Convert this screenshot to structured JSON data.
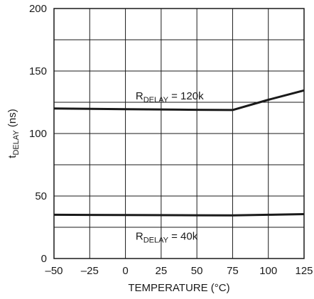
{
  "chart_data": {
    "type": "line",
    "title": "",
    "xlabel": "TEMPERATURE (°C)",
    "ylabel_main": "t",
    "ylabel_sub": "DELAY",
    "ylabel_unit": " (ns)",
    "xlim": [
      -50,
      125
    ],
    "ylim": [
      0,
      200
    ],
    "x_ticks": [
      "–50",
      "–25",
      "0",
      "25",
      "50",
      "75",
      "100",
      "125"
    ],
    "x_tick_values": [
      -50,
      -25,
      0,
      25,
      50,
      75,
      100,
      125
    ],
    "y_ticks": [
      "0",
      "50",
      "100",
      "150",
      "200"
    ],
    "y_tick_values": [
      0,
      50,
      100,
      150,
      200
    ],
    "grid": true,
    "series": [
      {
        "name": "RDELAY = 120k",
        "label_main": "R",
        "label_sub": "DELAY",
        "label_rest": " = 120k",
        "label_x": 25,
        "label_y": 130,
        "x": [
          -50,
          0,
          50,
          75,
          100,
          125
        ],
        "values": [
          120,
          119.5,
          119,
          118.8,
          127,
          134.5
        ],
        "color": "#1a1a1a"
      },
      {
        "name": "RDELAY = 40k",
        "label_main": "R",
        "label_sub": "DELAY",
        "label_rest": " = 40k",
        "label_x": 25,
        "label_y": 18,
        "x": [
          -50,
          0,
          50,
          75,
          100,
          125
        ],
        "values": [
          35,
          34.8,
          34.6,
          34.5,
          35,
          35.5
        ],
        "color": "#1a1a1a"
      }
    ]
  }
}
